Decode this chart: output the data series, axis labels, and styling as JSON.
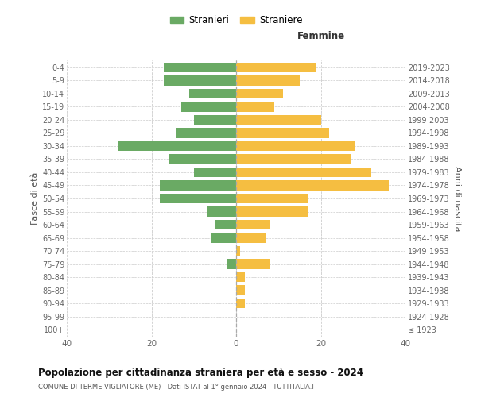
{
  "age_groups": [
    "100+",
    "95-99",
    "90-94",
    "85-89",
    "80-84",
    "75-79",
    "70-74",
    "65-69",
    "60-64",
    "55-59",
    "50-54",
    "45-49",
    "40-44",
    "35-39",
    "30-34",
    "25-29",
    "20-24",
    "15-19",
    "10-14",
    "5-9",
    "0-4"
  ],
  "birth_years": [
    "≤ 1923",
    "1924-1928",
    "1929-1933",
    "1934-1938",
    "1939-1943",
    "1944-1948",
    "1949-1953",
    "1954-1958",
    "1959-1963",
    "1964-1968",
    "1969-1973",
    "1974-1978",
    "1979-1983",
    "1984-1988",
    "1989-1993",
    "1994-1998",
    "1999-2003",
    "2004-2008",
    "2009-2013",
    "2014-2018",
    "2019-2023"
  ],
  "males": [
    0,
    0,
    0,
    0,
    0,
    2,
    0,
    6,
    5,
    7,
    18,
    18,
    10,
    16,
    28,
    14,
    10,
    13,
    11,
    17,
    17
  ],
  "females": [
    0,
    0,
    2,
    2,
    2,
    8,
    1,
    7,
    8,
    17,
    17,
    36,
    32,
    27,
    28,
    22,
    20,
    9,
    11,
    15,
    19
  ],
  "male_color": "#6aaa64",
  "female_color": "#f5be41",
  "background_color": "#ffffff",
  "grid_color": "#cccccc",
  "title": "Popolazione per cittadinanza straniera per età e sesso - 2024",
  "subtitle": "COMUNE DI TERME VIGLIATORE (ME) - Dati ISTAT al 1° gennaio 2024 - TUTTITALIA.IT",
  "xlabel_right": "Femmine",
  "ylabel_left": "Fasce di età",
  "ylabel_right": "Anni di nascita",
  "legend_male": "Stranieri",
  "legend_female": "Straniere",
  "xlim": 40,
  "bar_height": 0.75
}
